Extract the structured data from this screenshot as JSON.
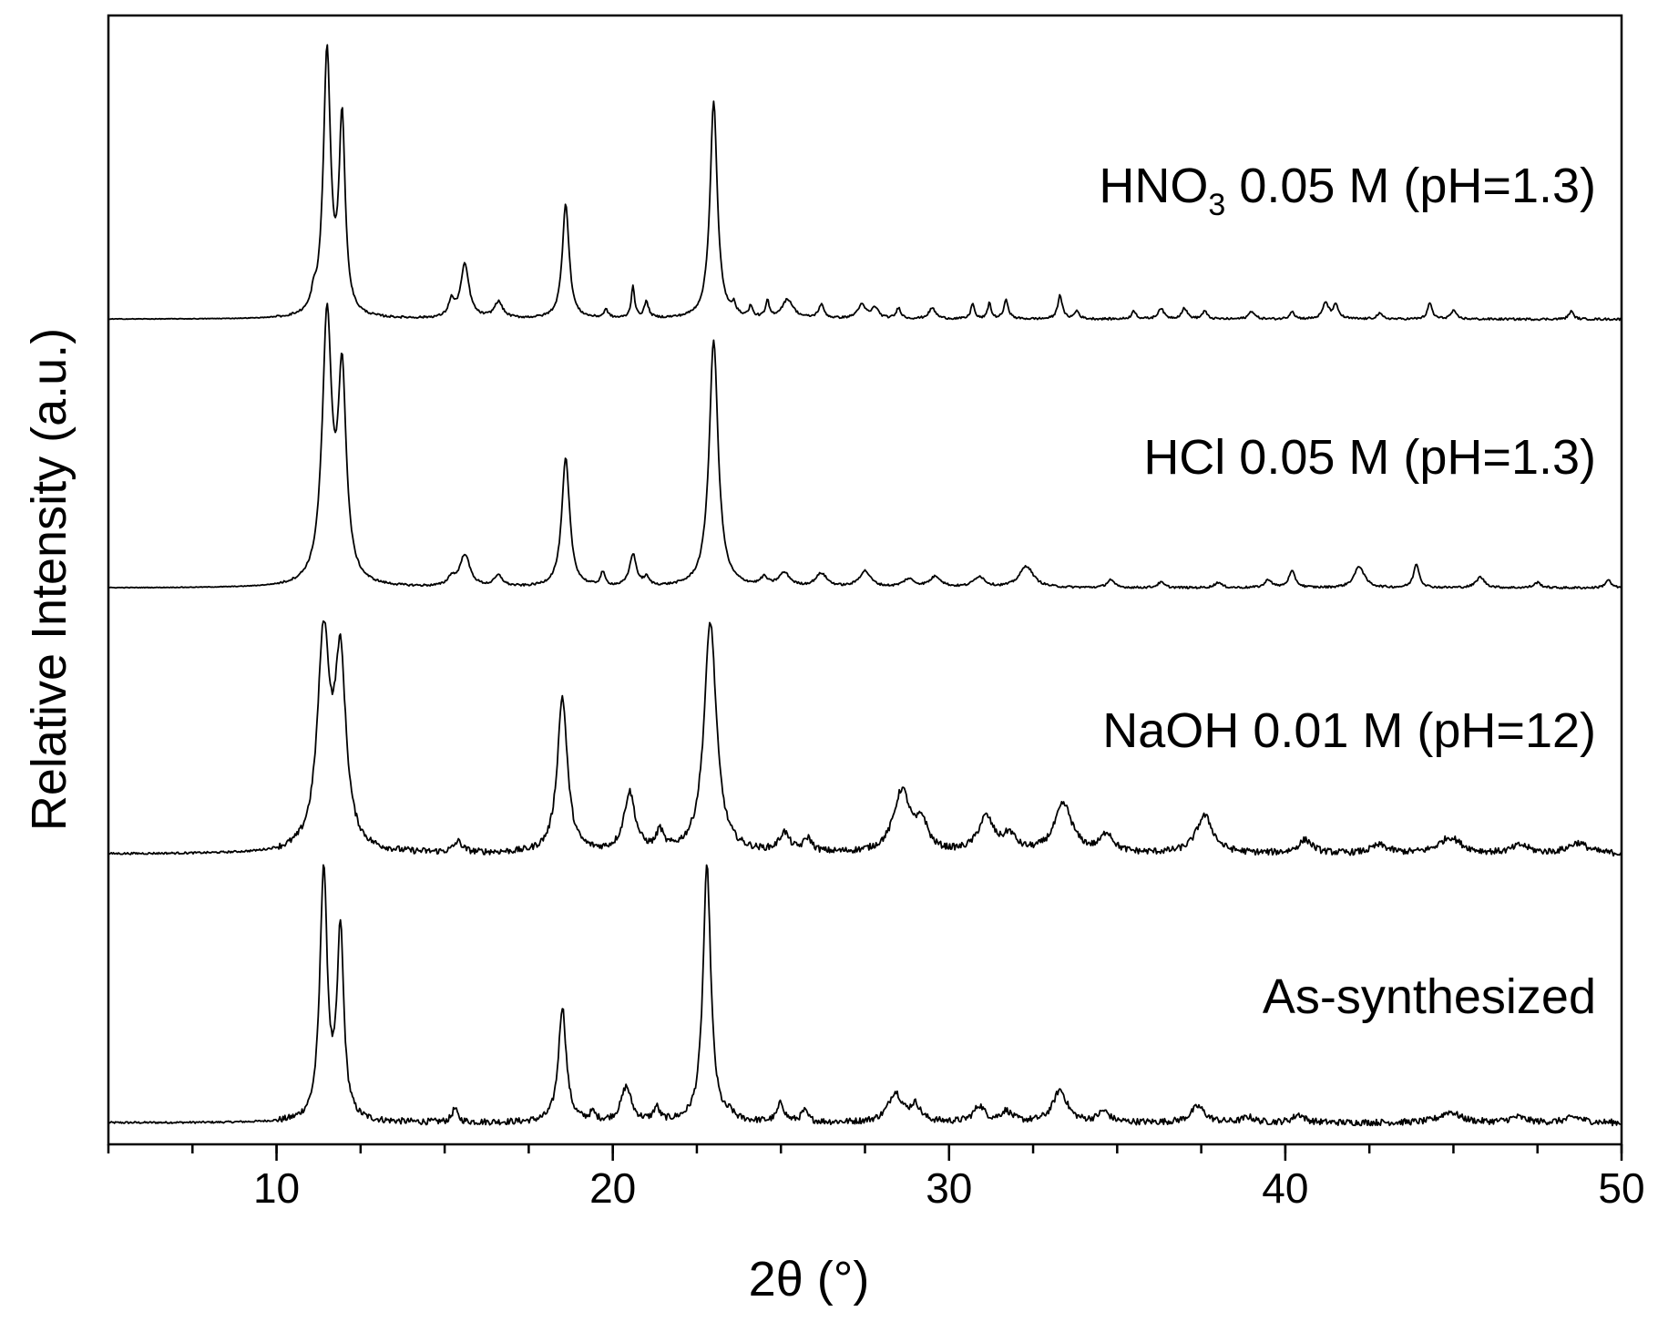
{
  "chart_data": {
    "type": "line",
    "title": "",
    "xlabel": "2θ (°)",
    "ylabel": "Relative Intensity (a.u.)",
    "xlim": [
      5,
      50
    ],
    "ylim": [
      0,
      4.2
    ],
    "xticks": [
      "10",
      "20",
      "30",
      "40",
      "50"
    ],
    "xtick_values": [
      10,
      20,
      30,
      40,
      50
    ],
    "minor_xtick_step": 2.5,
    "yticks": [],
    "grid": false,
    "legend": "none",
    "stacked_offset": true,
    "series": [
      {
        "label_main": "As-synthesized",
        "label_sub": "",
        "label_tail": "",
        "baseline": 0.08,
        "noise": 0.012,
        "peaks": [
          [
            11.4,
            0.93,
            0.13
          ],
          [
            11.9,
            0.7,
            0.12
          ],
          [
            15.3,
            0.05,
            0.1
          ],
          [
            18.5,
            0.43,
            0.14
          ],
          [
            19.4,
            0.03,
            0.1
          ],
          [
            20.4,
            0.13,
            0.18
          ],
          [
            21.3,
            0.05,
            0.1
          ],
          [
            22.8,
            0.95,
            0.14
          ],
          [
            23.5,
            0.02,
            0.1
          ],
          [
            25.0,
            0.07,
            0.12
          ],
          [
            25.7,
            0.04,
            0.12
          ],
          [
            28.4,
            0.11,
            0.25
          ],
          [
            29.0,
            0.06,
            0.18
          ],
          [
            30.9,
            0.06,
            0.2
          ],
          [
            31.7,
            0.04,
            0.2
          ],
          [
            33.3,
            0.12,
            0.25
          ],
          [
            34.6,
            0.04,
            0.2
          ],
          [
            37.4,
            0.06,
            0.25
          ],
          [
            38.9,
            0.02,
            0.2
          ],
          [
            40.4,
            0.03,
            0.2
          ],
          [
            44.9,
            0.04,
            0.35
          ],
          [
            46.9,
            0.02,
            0.3
          ],
          [
            48.6,
            0.02,
            0.3
          ]
        ]
      },
      {
        "label_main": "NaOH 0.01 M (pH=12)",
        "label_sub": "",
        "label_tail": "",
        "baseline": 1.08,
        "noise": 0.012,
        "peaks": [
          [
            11.4,
            0.78,
            0.22
          ],
          [
            11.9,
            0.68,
            0.2
          ],
          [
            15.4,
            0.04,
            0.15
          ],
          [
            18.5,
            0.58,
            0.18
          ],
          [
            20.5,
            0.22,
            0.2
          ],
          [
            21.4,
            0.07,
            0.12
          ],
          [
            22.9,
            0.86,
            0.22
          ],
          [
            25.1,
            0.07,
            0.18
          ],
          [
            25.8,
            0.05,
            0.15
          ],
          [
            28.6,
            0.23,
            0.3
          ],
          [
            29.2,
            0.1,
            0.2
          ],
          [
            31.1,
            0.13,
            0.28
          ],
          [
            31.8,
            0.06,
            0.22
          ],
          [
            33.4,
            0.18,
            0.32
          ],
          [
            34.7,
            0.07,
            0.22
          ],
          [
            37.6,
            0.14,
            0.3
          ],
          [
            40.6,
            0.05,
            0.25
          ],
          [
            42.8,
            0.03,
            0.3
          ],
          [
            44.9,
            0.06,
            0.4
          ],
          [
            47.0,
            0.03,
            0.3
          ],
          [
            48.7,
            0.04,
            0.35
          ]
        ]
      },
      {
        "label_main": "HCl 0.05 M (pH=1.3)",
        "label_sub": "",
        "label_tail": "",
        "baseline": 2.07,
        "noise": 0.004,
        "peaks": [
          [
            11.5,
            0.98,
            0.17
          ],
          [
            11.95,
            0.75,
            0.15
          ],
          [
            15.6,
            0.12,
            0.18
          ],
          [
            15.2,
            0.03,
            0.12
          ],
          [
            16.6,
            0.04,
            0.15
          ],
          [
            18.6,
            0.48,
            0.14
          ],
          [
            19.7,
            0.05,
            0.08
          ],
          [
            20.6,
            0.12,
            0.12
          ],
          [
            21.0,
            0.03,
            0.1
          ],
          [
            23.0,
            0.92,
            0.16
          ],
          [
            24.5,
            0.03,
            0.12
          ],
          [
            25.1,
            0.05,
            0.2
          ],
          [
            26.2,
            0.05,
            0.2
          ],
          [
            27.5,
            0.06,
            0.2
          ],
          [
            28.8,
            0.03,
            0.2
          ],
          [
            29.6,
            0.04,
            0.2
          ],
          [
            30.9,
            0.04,
            0.2
          ],
          [
            32.3,
            0.08,
            0.25
          ],
          [
            34.8,
            0.03,
            0.12
          ],
          [
            36.3,
            0.02,
            0.12
          ],
          [
            38.0,
            0.02,
            0.12
          ],
          [
            39.5,
            0.03,
            0.12
          ],
          [
            40.2,
            0.06,
            0.12
          ],
          [
            42.2,
            0.08,
            0.18
          ],
          [
            43.9,
            0.09,
            0.1
          ],
          [
            45.8,
            0.04,
            0.15
          ],
          [
            47.5,
            0.02,
            0.12
          ],
          [
            49.6,
            0.03,
            0.1
          ]
        ]
      },
      {
        "label_main": "HNO",
        "label_sub": "3",
        "label_tail": " 0.05 M (pH=1.3)",
        "baseline": 3.07,
        "noise": 0.004,
        "peaks": [
          [
            11.5,
            0.98,
            0.13
          ],
          [
            11.95,
            0.72,
            0.11
          ],
          [
            11.1,
            0.05,
            0.08
          ],
          [
            15.6,
            0.2,
            0.15
          ],
          [
            15.2,
            0.06,
            0.1
          ],
          [
            16.6,
            0.06,
            0.15
          ],
          [
            18.6,
            0.43,
            0.12
          ],
          [
            19.8,
            0.03,
            0.08
          ],
          [
            20.6,
            0.12,
            0.06
          ],
          [
            21.0,
            0.06,
            0.08
          ],
          [
            23.0,
            0.81,
            0.13
          ],
          [
            23.6,
            0.04,
            0.06
          ],
          [
            24.1,
            0.04,
            0.06
          ],
          [
            24.6,
            0.06,
            0.06
          ],
          [
            25.2,
            0.07,
            0.2
          ],
          [
            26.2,
            0.05,
            0.1
          ],
          [
            27.4,
            0.05,
            0.15
          ],
          [
            27.8,
            0.04,
            0.12
          ],
          [
            28.5,
            0.04,
            0.08
          ],
          [
            29.5,
            0.04,
            0.12
          ],
          [
            30.7,
            0.06,
            0.06
          ],
          [
            31.2,
            0.06,
            0.06
          ],
          [
            31.7,
            0.07,
            0.08
          ],
          [
            33.3,
            0.09,
            0.08
          ],
          [
            33.8,
            0.03,
            0.08
          ],
          [
            35.5,
            0.03,
            0.08
          ],
          [
            36.3,
            0.04,
            0.1
          ],
          [
            37.0,
            0.04,
            0.1
          ],
          [
            37.6,
            0.03,
            0.08
          ],
          [
            39.0,
            0.03,
            0.1
          ],
          [
            40.2,
            0.03,
            0.08
          ],
          [
            41.2,
            0.06,
            0.1
          ],
          [
            41.5,
            0.05,
            0.1
          ],
          [
            42.8,
            0.02,
            0.1
          ],
          [
            44.3,
            0.06,
            0.08
          ],
          [
            45.0,
            0.03,
            0.1
          ],
          [
            48.5,
            0.03,
            0.08
          ]
        ]
      }
    ]
  }
}
